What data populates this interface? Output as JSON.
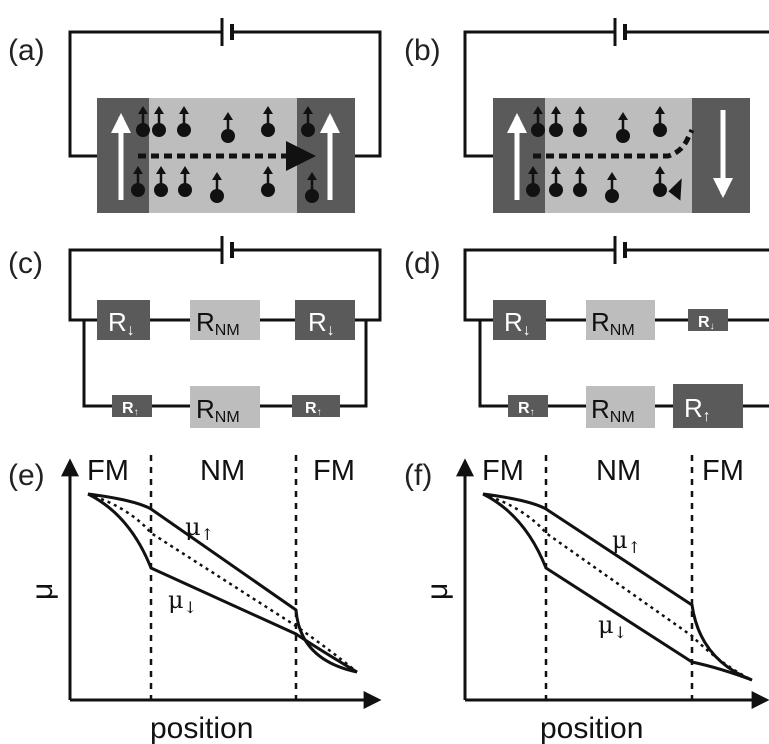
{
  "panels": {
    "a": {
      "label": "(a)"
    },
    "b": {
      "label": "(b)"
    },
    "c": {
      "label": "(c)",
      "top": [
        {
          "main": "R",
          "sub": "↓"
        },
        {
          "main": "R",
          "sub": "NM"
        },
        {
          "main": "R",
          "sub": "↓"
        }
      ],
      "bottom": [
        {
          "main": "R",
          "sub": "↑"
        },
        {
          "main": "R",
          "sub": "NM"
        },
        {
          "main": "R",
          "sub": "↑"
        }
      ]
    },
    "d": {
      "label": "(d)",
      "top": [
        {
          "main": "R",
          "sub": "↓"
        },
        {
          "main": "R",
          "sub": "NM"
        },
        {
          "main": "R",
          "sub": "↓"
        }
      ],
      "bottom": [
        {
          "main": "R",
          "sub": "↑"
        },
        {
          "main": "R",
          "sub": "NM"
        },
        {
          "main": "R",
          "sub": "↑"
        }
      ]
    },
    "e": {
      "label": "(e)",
      "regions": [
        "FM",
        "NM",
        "FM"
      ],
      "xlabel": "position",
      "ylabel": "μ",
      "mu_up": "μ",
      "mu_up_sub": "↑",
      "mu_down": "μ",
      "mu_down_sub": "↓"
    },
    "f": {
      "label": "(f)",
      "regions": [
        "FM",
        "NM",
        "FM"
      ],
      "xlabel": "position",
      "ylabel": "μ",
      "mu_up": "μ",
      "mu_up_sub": "↑",
      "mu_down": "μ",
      "mu_down_sub": "↓"
    }
  },
  "colors": {
    "ferromagnet": "#5a5a5a",
    "normal_metal": "#bdbdbd",
    "line": "#111111"
  }
}
